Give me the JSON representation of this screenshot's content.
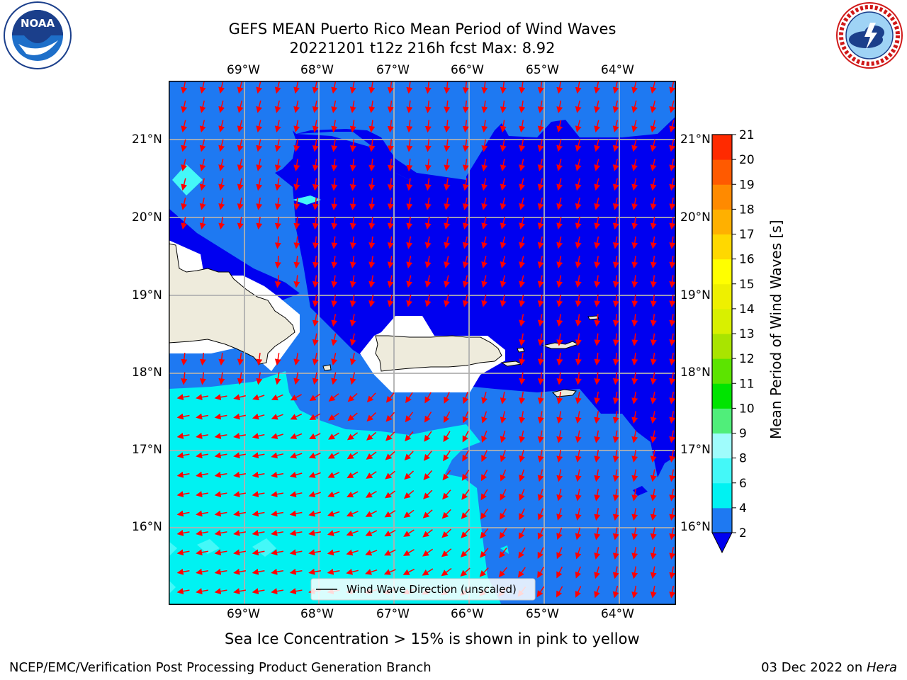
{
  "title": {
    "line1": "GEFS MEAN Puerto Rico Mean Period of Wind Waves",
    "line2": "20221201 t12z 216h fcst   Max: 8.92"
  },
  "logos": {
    "left": {
      "icon": "noaa-logo",
      "text": "NOAA"
    },
    "right": {
      "icon": "national-weather-service-logo",
      "text": "NATIONAL WEATHER SERVICE"
    }
  },
  "map": {
    "lon_labels": [
      "69°W",
      "68°W",
      "67°W",
      "66°W",
      "65°W",
      "64°W"
    ],
    "lat_labels": [
      "21°N",
      "20°N",
      "19°N",
      "18°N",
      "17°N",
      "16°N"
    ],
    "legend": "Wind Wave Direction (unscaled)",
    "colors": {
      "band_2_4": "#1e79f2",
      "band_4_6": "#00f2f2",
      "band_6_8": "#44f8f8",
      "below_2": "#0000f0",
      "land": "#eeebdc",
      "arrow": "#ff0000"
    }
  },
  "colorbar": {
    "label": "Mean Period of Wind Waves [s]",
    "ticks": [
      "2",
      "4",
      "6",
      "8",
      "9",
      "10",
      "11",
      "12",
      "13",
      "14",
      "15",
      "16",
      "17",
      "18",
      "19",
      "20",
      "21"
    ],
    "colors": [
      "#1e79f2",
      "#00f2f2",
      "#44f8f8",
      "#9ffcfc",
      "#50ee7a",
      "#00e400",
      "#5ce400",
      "#a9e400",
      "#d8f000",
      "#eef000",
      "#ffff00",
      "#ffd800",
      "#ffb000",
      "#ff8a00",
      "#ff5a00",
      "#ff2a00"
    ],
    "extend_color": "#0000f0"
  },
  "footer": {
    "note": "Sea Ice Concentration > 15% is shown in pink to yellow",
    "credit": "NCEP/EMC/Verification Post Processing Product Generation Branch",
    "date": "03 Dec 2022 on ",
    "machine": "Hera"
  }
}
